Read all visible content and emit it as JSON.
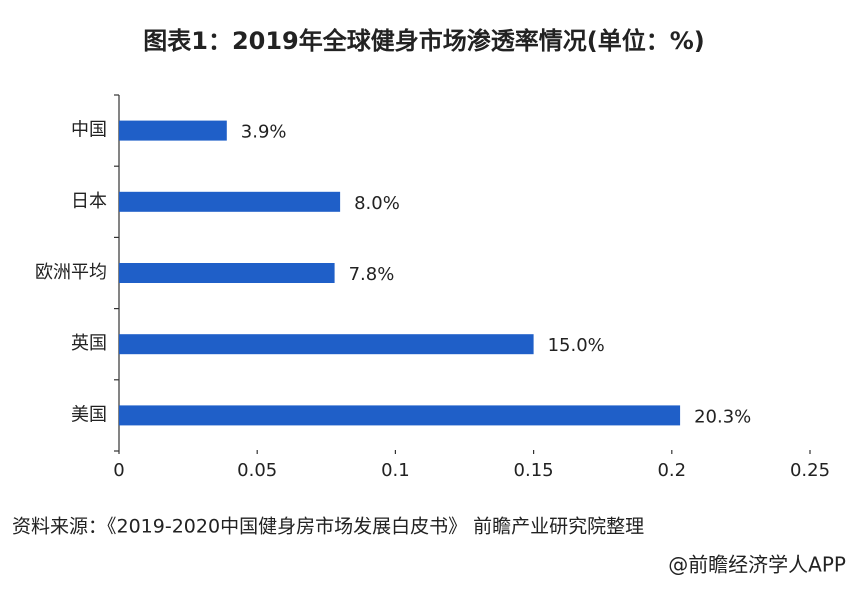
{
  "chart_data": {
    "type": "hbar",
    "title": "图表1：2019年全球健身市场渗透率情况(单位：%)",
    "categories": [
      "中国",
      "日本",
      "欧洲平均",
      "英国",
      "美国"
    ],
    "values": [
      0.039,
      0.08,
      0.078,
      0.15,
      0.203
    ],
    "value_labels": [
      "3.9%",
      "8.0%",
      "7.8%",
      "15.0%",
      "20.3%"
    ],
    "color": "#1f5fc8",
    "xlim": [
      0,
      0.25
    ],
    "xticks": [
      0,
      0.05,
      0.1,
      0.15,
      0.2,
      0.25
    ],
    "source": "资料来源：《2019-2020中国健身房市场发展白皮书》 前瞻产业研究院整理",
    "credit": "@前瞻经济学人APP"
  }
}
